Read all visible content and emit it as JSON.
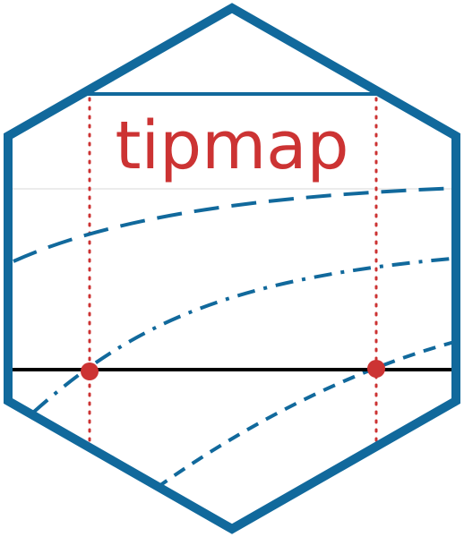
{
  "logo": {
    "title": "tipmap"
  },
  "colors": {
    "hex_border": "#11699c",
    "curves": "#11699c",
    "title_text": "#cc3333",
    "markers": "#cc3333",
    "reference_line": "#000000",
    "background": "#ffffff",
    "faint_grid": "#e6e6e6"
  }
}
